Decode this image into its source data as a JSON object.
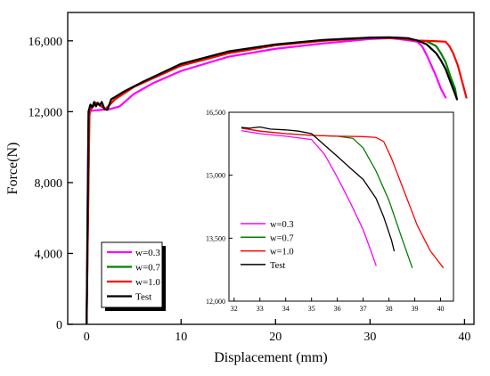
{
  "chart_data": [
    {
      "type": "line",
      "xlabel": "Displacement (mm)",
      "ylabel": "Force(N)",
      "xlim": [
        -2,
        41
      ],
      "ylim": [
        0,
        17600
      ],
      "x_ticks": [
        0,
        10,
        20,
        30,
        40
      ],
      "x_tick_labels": [
        "0",
        "10",
        "20",
        "30",
        "40"
      ],
      "y_ticks": [
        0,
        4000,
        8000,
        12000,
        16000
      ],
      "y_tick_labels": [
        "0",
        "4,000",
        "8,000",
        "12,000",
        "16,000"
      ],
      "legend": "bottom-left",
      "series": [
        {
          "name": "w=0.3",
          "color": "#ff00ff",
          "points": [
            [
              0,
              0
            ],
            [
              0.2,
              11500
            ],
            [
              0.4,
              12050
            ],
            [
              1.5,
              12100
            ],
            [
              2.5,
              12150
            ],
            [
              3.5,
              12300
            ],
            [
              5,
              13000
            ],
            [
              7,
              13600
            ],
            [
              10,
              14300
            ],
            [
              15,
              15100
            ],
            [
              20,
              15550
            ],
            [
              25,
              15850
            ],
            [
              30,
              16100
            ],
            [
              32,
              16150
            ],
            [
              33,
              16100
            ],
            [
              34,
              16030
            ],
            [
              35,
              15950
            ],
            [
              35.5,
              15700
            ],
            [
              36,
              15200
            ],
            [
              36.5,
              14600
            ],
            [
              37,
              14000
            ],
            [
              37.5,
              13300
            ],
            [
              38,
              12800
            ]
          ]
        },
        {
          "name": "w=0.7",
          "color": "#008000",
          "points": [
            [
              0,
              0
            ],
            [
              0.3,
              12050
            ],
            [
              1,
              12500
            ],
            [
              2,
              12150
            ],
            [
              3,
              12700
            ],
            [
              5,
              13400
            ],
            [
              10,
              14600
            ],
            [
              15,
              15300
            ],
            [
              20,
              15750
            ],
            [
              25,
              16000
            ],
            [
              30,
              16170
            ],
            [
              33,
              16150
            ],
            [
              35,
              16020
            ],
            [
              36,
              15980
            ],
            [
              37,
              15700
            ],
            [
              37.5,
              15300
            ],
            [
              38,
              14800
            ],
            [
              38.5,
              14000
            ],
            [
              39,
              13300
            ],
            [
              39.2,
              12700
            ]
          ]
        },
        {
          "name": "w=1.0",
          "color": "#ff0000",
          "points": [
            [
              0,
              0
            ],
            [
              0.3,
              12050
            ],
            [
              1,
              12500
            ],
            [
              2,
              12150
            ],
            [
              3,
              12700
            ],
            [
              5,
              13400
            ],
            [
              10,
              14600
            ],
            [
              15,
              15300
            ],
            [
              20,
              15750
            ],
            [
              25,
              16000
            ],
            [
              30,
              16170
            ],
            [
              33,
              16150
            ],
            [
              35,
              16020
            ],
            [
              37,
              15980
            ],
            [
              38,
              15950
            ],
            [
              38.4,
              15700
            ],
            [
              38.8,
              15300
            ],
            [
              39.3,
              14600
            ],
            [
              39.8,
              13600
            ],
            [
              40.2,
              12800
            ]
          ]
        },
        {
          "name": "Test",
          "color": "#000000",
          "points": [
            [
              0,
              0
            ],
            [
              0.2,
              12000
            ],
            [
              0.4,
              12400
            ],
            [
              0.6,
              12250
            ],
            [
              0.8,
              12550
            ],
            [
              1.0,
              12300
            ],
            [
              1.2,
              12500
            ],
            [
              1.4,
              12350
            ],
            [
              1.6,
              12550
            ],
            [
              1.9,
              12150
            ],
            [
              2.2,
              12100
            ],
            [
              2.6,
              12700
            ],
            [
              4,
              13150
            ],
            [
              6,
              13700
            ],
            [
              10,
              14700
            ],
            [
              15,
              15400
            ],
            [
              20,
              15800
            ],
            [
              25,
              16050
            ],
            [
              30,
              16180
            ],
            [
              32,
              16200
            ],
            [
              34,
              16150
            ],
            [
              35,
              16020
            ],
            [
              36,
              15800
            ],
            [
              36.5,
              15550
            ],
            [
              37,
              15300
            ],
            [
              37.5,
              14900
            ],
            [
              38,
              14400
            ],
            [
              38.5,
              13700
            ],
            [
              39,
              13000
            ],
            [
              39.2,
              12700
            ]
          ]
        }
      ]
    },
    {
      "type": "line",
      "xlim": [
        31.8,
        40.5
      ],
      "ylim": [
        12000,
        16500
      ],
      "x_ticks": [
        32,
        33,
        34,
        35,
        36,
        37,
        38,
        39,
        40
      ],
      "x_tick_labels": [
        "32",
        "33",
        "34",
        "35",
        "36",
        "37",
        "38",
        "39",
        "40"
      ],
      "y_ticks": [
        12000,
        13500,
        15000,
        16500
      ],
      "y_tick_labels": [
        "12,000",
        "13,500",
        "15,000",
        "16,500"
      ],
      "legend": "bottom-left",
      "series": [
        {
          "name": "w=0.3",
          "color": "#ff00ff",
          "points": [
            [
              32.3,
              16060
            ],
            [
              33,
              15990
            ],
            [
              34,
              15930
            ],
            [
              35,
              15850
            ],
            [
              35.5,
              15500
            ],
            [
              36,
              14950
            ],
            [
              36.5,
              14350
            ],
            [
              37,
              13700
            ],
            [
              37.3,
              13200
            ],
            [
              37.5,
              12850
            ]
          ]
        },
        {
          "name": "w=0.7",
          "color": "#008000",
          "points": [
            [
              32.3,
              16120
            ],
            [
              33,
              16050
            ],
            [
              34,
              15990
            ],
            [
              35,
              15950
            ],
            [
              36,
              15930
            ],
            [
              36.6,
              15880
            ],
            [
              37.0,
              15650
            ],
            [
              37.5,
              15100
            ],
            [
              38,
              14400
            ],
            [
              38.5,
              13500
            ],
            [
              38.9,
              12800
            ]
          ]
        },
        {
          "name": "w=1.0",
          "color": "#ff0000",
          "points": [
            [
              32.3,
              16120
            ],
            [
              33,
              16050
            ],
            [
              34,
              15990
            ],
            [
              35,
              15950
            ],
            [
              36,
              15930
            ],
            [
              37,
              15920
            ],
            [
              37.5,
              15900
            ],
            [
              37.8,
              15800
            ],
            [
              38.1,
              15400
            ],
            [
              38.6,
              14600
            ],
            [
              39.1,
              13800
            ],
            [
              39.6,
              13200
            ],
            [
              40.1,
              12800
            ]
          ]
        },
        {
          "name": "Test",
          "color": "#000000",
          "points": [
            [
              32.3,
              16140
            ],
            [
              32.6,
              16120
            ],
            [
              33,
              16150
            ],
            [
              33.4,
              16100
            ],
            [
              34,
              16080
            ],
            [
              34.5,
              16050
            ],
            [
              35,
              15990
            ],
            [
              35.5,
              15720
            ],
            [
              36,
              15450
            ],
            [
              36.5,
              15170
            ],
            [
              37,
              14900
            ],
            [
              37.5,
              14450
            ],
            [
              37.8,
              14000
            ],
            [
              38.1,
              13450
            ],
            [
              38.2,
              13200
            ]
          ]
        }
      ]
    }
  ]
}
